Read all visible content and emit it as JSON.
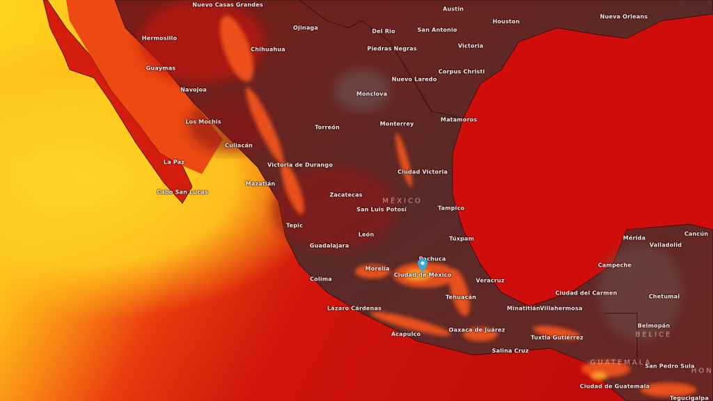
{
  "map": {
    "layer": "temperature heat map",
    "colors": {
      "hot_max": "#ffd21f",
      "hot": "#f46a12",
      "warm": "#d8150c",
      "mild": "#a50f0f",
      "cool_land": "#4e2f2f",
      "marker": "#3aa6e0"
    },
    "marker": {
      "icon": "location-pin-icon",
      "city": "Ciudad de México"
    },
    "countries": [
      "MÉXICO",
      "BELICE",
      "GUATEMALA",
      "HOND"
    ],
    "cities": [
      "Nuevo Casas Grandes",
      "Austin",
      "Nueva Orleans",
      "Hermosillo",
      "Ojinaga",
      "Del Rio",
      "San Antonio",
      "Houston",
      "Chihuahua",
      "Piedras Negras",
      "Victoria",
      "Guaymas",
      "Corpus Christi",
      "Nuevo Laredo",
      "Navojoa",
      "Monclova",
      "Los Mochis",
      "Torreón",
      "Monterrey",
      "Matamoros",
      "Culiacán",
      "Victoria de Durango",
      "La Paz",
      "Ciudad Victoria",
      "Mazatlán",
      "Cabo San Lucas",
      "Zacatecas",
      "San Luis Potosí",
      "Tampico",
      "Tepic",
      "León",
      "Guadalajara",
      "Túxpam",
      "Mérida",
      "Valladolid",
      "Cancún",
      "Pachuca",
      "Morelia",
      "Ciudad de México",
      "Campeche",
      "Colima",
      "Veracruz",
      "Ciudad del Carmen",
      "Chetumal",
      "Tehuacán",
      "Lázaro Cárdenas",
      "Minatitlán",
      "Villahermosa",
      "Belmopán",
      "Oaxaca de Juárez",
      "Tuxtla Gutiérrez",
      "Acapulco",
      "Salina Cruz",
      "San Pedro Sula",
      "Ciudad de Guatemala",
      "Tegucigalpa"
    ]
  }
}
